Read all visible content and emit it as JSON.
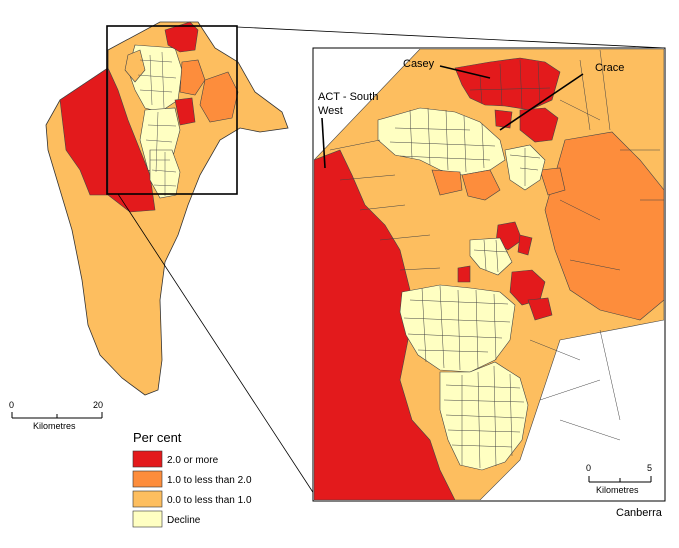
{
  "colors": {
    "high": "#e31a1c",
    "mid_high": "#fd8d3c",
    "mid_low": "#fdbe5f",
    "decline": "#ffffc2"
  },
  "legend": {
    "title": "Per cent",
    "items": [
      {
        "label": "2.0 or more",
        "color_key": "high"
      },
      {
        "label": "1.0 to less than 2.0",
        "color_key": "mid_high"
      },
      {
        "label": "0.0 to less than 1.0",
        "color_key": "mid_low"
      },
      {
        "label": "Decline",
        "color_key": "decline"
      }
    ]
  },
  "scale_overview": {
    "start": "0",
    "end": "20",
    "unit": "Kilometres"
  },
  "scale_inset": {
    "start": "0",
    "end": "5",
    "unit": "Kilometres"
  },
  "labels": {
    "casey": "Casey",
    "crace": "Crace",
    "act_south_west_line1": "ACT - South",
    "act_south_west_line2": "West",
    "inset_caption": "Canberra"
  }
}
